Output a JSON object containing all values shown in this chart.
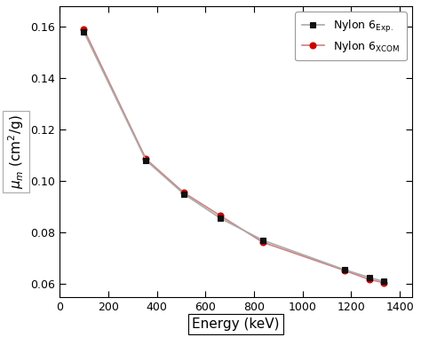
{
  "energy_exp": [
    100,
    356,
    511,
    662,
    836,
    1173,
    1275,
    1333
  ],
  "mu_exp": [
    0.158,
    0.108,
    0.095,
    0.0855,
    0.077,
    0.0655,
    0.0625,
    0.061
  ],
  "energy_xcom": [
    100,
    356,
    511,
    662,
    836,
    1173,
    1275,
    1333
  ],
  "mu_xcom": [
    0.159,
    0.1085,
    0.0955,
    0.0865,
    0.0762,
    0.0652,
    0.0617,
    0.0605
  ],
  "line_color_exp": "#aaaaaa",
  "line_color_xcom": "#d08080",
  "marker_color_exp": "#111111",
  "marker_color_xcom": "#cc0000",
  "xlabel": "Energy (keV)",
  "ylabel": "$\\mu_m$ (cm$^2$/g)",
  "xlim": [
    0,
    1450
  ],
  "ylim": [
    0.055,
    0.168
  ],
  "xticks": [
    0,
    200,
    400,
    600,
    800,
    1000,
    1200,
    1400
  ],
  "yticks": [
    0.06,
    0.08,
    0.1,
    0.12,
    0.14,
    0.16
  ],
  "legend_label_exp": "Nylon 6$_{\\mathrm{Exp.}}$",
  "legend_label_xcom": "Nylon 6$_{\\mathrm{XCOM}}$",
  "bg_color": "#ffffff",
  "plot_bg_color": "#ffffff"
}
